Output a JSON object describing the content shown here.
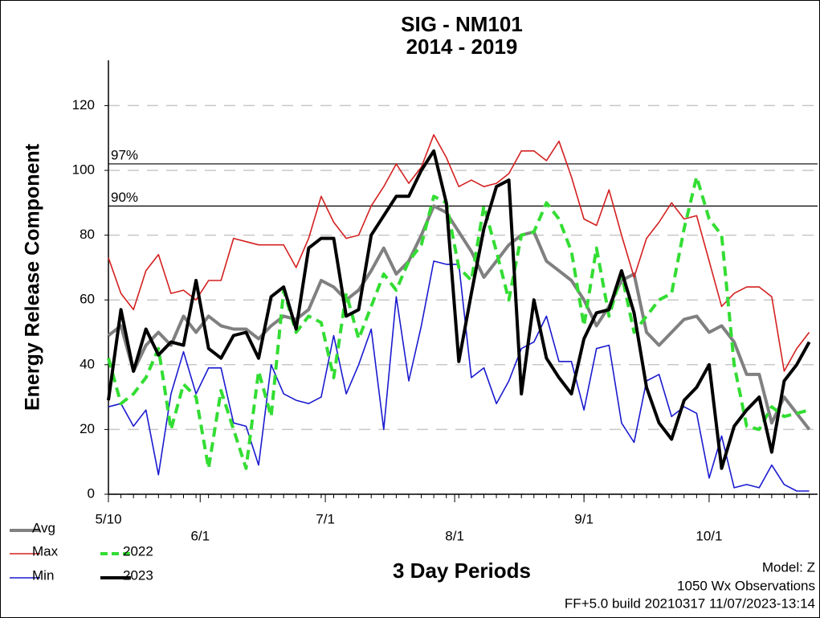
{
  "chart_data": {
    "type": "line",
    "title": "SIG - NM101",
    "subtitle": "2014 - 2019",
    "y_label": "Energy Release Component",
    "x_label": "3 Day Periods",
    "annotations": [
      "Model: Z",
      "1050 Wx Observations",
      "FF+5.0 build 20210317 11/07/2023-13:14"
    ],
    "x": [
      0,
      3,
      6,
      9,
      12,
      15,
      18,
      21,
      24,
      27,
      30,
      33,
      36,
      39,
      42,
      45,
      48,
      51,
      54,
      57,
      60,
      63,
      66,
      69,
      72,
      75,
      78,
      81,
      84,
      87,
      90,
      93,
      96,
      99,
      102,
      105,
      108,
      111,
      114,
      117,
      120,
      123,
      126,
      129,
      132,
      135,
      138,
      141,
      144,
      147,
      150,
      153,
      156,
      159,
      162,
      165,
      168
    ],
    "xlim": [
      0,
      170
    ],
    "xticks": [
      {
        "value": 0,
        "label": "5/10"
      },
      {
        "value": 22,
        "label": "6/1"
      },
      {
        "value": 52,
        "label": "7/1"
      },
      {
        "value": 83,
        "label": "8/1"
      },
      {
        "value": 114,
        "label": "9/1"
      },
      {
        "value": 144,
        "label": "10/1"
      }
    ],
    "ylim": [
      0,
      134
    ],
    "yticks": [
      0,
      20,
      40,
      60,
      80,
      100,
      120
    ],
    "grid": true,
    "reference_lines": [
      {
        "label": "97%",
        "value": 102
      },
      {
        "label": "90%",
        "value": 89
      }
    ],
    "series": [
      {
        "name": "Avg",
        "color": "#808080",
        "width": 4,
        "style": "solid",
        "values": [
          49,
          52,
          38,
          46,
          50,
          46,
          55,
          50,
          55,
          52,
          51,
          51,
          48,
          52,
          55,
          54,
          57,
          66,
          64,
          60,
          63,
          69,
          76,
          68,
          72,
          80,
          89,
          87,
          81,
          75,
          67,
          72,
          77,
          80,
          81,
          72,
          69,
          66,
          60,
          52,
          58,
          66,
          68,
          50,
          46,
          50,
          54,
          55,
          50,
          52,
          47,
          37,
          37,
          22,
          30,
          25,
          20
        ]
      },
      {
        "name": "Max",
        "color": "#d42020",
        "width": 1.6,
        "style": "solid",
        "values": [
          73,
          62,
          57,
          69,
          74,
          62,
          63,
          60,
          66,
          66,
          79,
          78,
          77,
          77,
          77,
          70,
          79,
          92,
          84,
          79,
          80,
          89,
          95,
          102,
          96,
          101,
          111,
          104,
          95,
          97,
          95,
          96,
          99,
          106,
          106,
          103,
          109,
          98,
          85,
          83,
          94,
          80,
          67,
          79,
          84,
          90,
          85,
          86,
          72,
          58,
          62,
          64,
          64,
          61,
          38,
          45,
          50
        ]
      },
      {
        "name": "Min",
        "color": "#1a1ad0",
        "width": 1.6,
        "style": "solid",
        "values": [
          27,
          28,
          21,
          26,
          6,
          31,
          44,
          31,
          39,
          39,
          22,
          21,
          9,
          40,
          31,
          29,
          28,
          30,
          49,
          31,
          40,
          51,
          20,
          61,
          35,
          52,
          72,
          71,
          71,
          36,
          39,
          28,
          35,
          45,
          47,
          55,
          41,
          41,
          26,
          45,
          46,
          22,
          16,
          35,
          37,
          24,
          27,
          25,
          5,
          18,
          2,
          3,
          2,
          9,
          3,
          1,
          1
        ]
      },
      {
        "name": "2022",
        "color": "#33dd33",
        "width": 4,
        "style": "dashed",
        "values": [
          42,
          28,
          31,
          36,
          45,
          20,
          34,
          30,
          8,
          32,
          20,
          8,
          38,
          24,
          63,
          50,
          55,
          53,
          36,
          62,
          48,
          58,
          68,
          63,
          72,
          77,
          92,
          90,
          70,
          66,
          89,
          75,
          60,
          80,
          81,
          90,
          85,
          75,
          52,
          76,
          55,
          68,
          50,
          55,
          60,
          62,
          82,
          98,
          85,
          80,
          40,
          21,
          20,
          27,
          24,
          25,
          26
        ]
      },
      {
        "name": "2023",
        "color": "#000000",
        "width": 4,
        "style": "solid",
        "values": [
          29,
          57,
          38,
          51,
          43,
          47,
          46,
          66,
          45,
          42,
          49,
          50,
          42,
          61,
          64,
          51,
          76,
          79,
          79,
          55,
          57,
          80,
          86,
          92,
          92,
          100,
          106,
          90,
          41,
          62,
          82,
          95,
          97,
          31,
          60,
          42,
          36,
          31,
          48,
          56,
          57,
          69,
          56,
          33,
          22,
          17,
          29,
          33,
          40,
          8,
          21,
          26,
          30,
          13,
          35,
          40,
          47
        ]
      }
    ]
  }
}
